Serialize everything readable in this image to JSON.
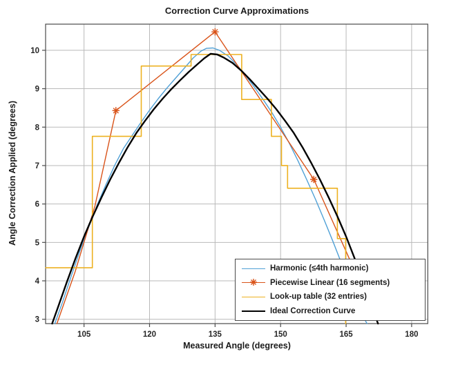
{
  "figure": {
    "title": "Correction Curve Approximations",
    "background": "#ffffff"
  },
  "chart_data": {
    "type": "line",
    "title": "Correction Curve Approximations",
    "xlabel": "Measured Angle (degrees)",
    "ylabel": "Angle Correction Applied (degrees)",
    "xlim": [
      96.2,
      183.7
    ],
    "ylim": [
      2.887,
      10.68
    ],
    "xticks": [
      105,
      120,
      135,
      150,
      165,
      180
    ],
    "yticks": [
      3,
      4,
      5,
      6,
      7,
      8,
      9,
      10
    ],
    "grid": true,
    "legend_position": "inside-bottom-right",
    "colors": {
      "grid": "#b9b9b9",
      "axis": "#4a4a4a",
      "tick_text": "#262626",
      "harmonic": "#4fa0d6",
      "piecewise": "#d95319",
      "lut": "#edb120",
      "ideal": "#000000"
    },
    "series": [
      {
        "name": "Harmonic (≤4th harmonic)",
        "slug": "harmonic",
        "color": "#4fa0d6",
        "width": 1.4,
        "marker": "none",
        "points": [
          [
            98.3,
            2.887
          ],
          [
            100,
            3.42
          ],
          [
            102,
            4.1
          ],
          [
            104,
            4.76
          ],
          [
            106,
            5.38
          ],
          [
            108,
            5.97
          ],
          [
            110,
            6.5
          ],
          [
            112,
            7.0
          ],
          [
            114,
            7.44
          ],
          [
            116,
            7.78
          ],
          [
            118,
            8.12
          ],
          [
            120,
            8.44
          ],
          [
            122,
            8.74
          ],
          [
            124,
            9.02
          ],
          [
            126,
            9.28
          ],
          [
            128,
            9.54
          ],
          [
            130,
            9.8
          ],
          [
            131.8,
            9.98
          ],
          [
            133,
            10.05
          ],
          [
            134.5,
            10.06
          ],
          [
            136,
            10.0
          ],
          [
            138,
            9.85
          ],
          [
            140,
            9.62
          ],
          [
            142,
            9.34
          ],
          [
            144,
            9.04
          ],
          [
            146,
            8.72
          ],
          [
            148,
            8.38
          ],
          [
            150,
            8.0
          ],
          [
            152,
            7.58
          ],
          [
            154,
            7.12
          ],
          [
            156,
            6.63
          ],
          [
            158,
            6.12
          ],
          [
            160,
            5.58
          ],
          [
            162,
            5.02
          ],
          [
            164,
            4.44
          ],
          [
            166,
            3.85
          ],
          [
            168,
            3.24
          ],
          [
            169.8,
            2.887
          ]
        ]
      },
      {
        "name": "Piecewise Linear (16 segments)",
        "slug": "piecewise",
        "color": "#d95319",
        "width": 1.4,
        "marker": "asterisk",
        "points": [
          [
            98.8,
            2.887
          ],
          [
            103,
            4.25
          ],
          [
            107.5,
            5.95
          ],
          [
            112.3,
            8.43
          ],
          [
            135,
            10.48
          ],
          [
            157.6,
            6.64
          ],
          [
            172.4,
            2.887
          ]
        ],
        "marker_points": [
          [
            112.3,
            8.43
          ],
          [
            135,
            10.48
          ],
          [
            157.6,
            6.64
          ]
        ]
      },
      {
        "name": "Look-up table (32 entries)",
        "slug": "lut",
        "color": "#edb120",
        "width": 1.6,
        "marker": "none",
        "points": [
          [
            96.2,
            4.34
          ],
          [
            106.9,
            4.34
          ],
          [
            106.9,
            7.76
          ],
          [
            118.1,
            7.76
          ],
          [
            118.1,
            9.59
          ],
          [
            129.5,
            9.59
          ],
          [
            129.5,
            9.89
          ],
          [
            141.1,
            9.89
          ],
          [
            141.1,
            8.72
          ],
          [
            147.9,
            8.72
          ],
          [
            147.9,
            7.76
          ],
          [
            150.2,
            7.76
          ],
          [
            150.2,
            7.0
          ],
          [
            151.6,
            7.0
          ],
          [
            151.6,
            6.41
          ],
          [
            163.0,
            6.41
          ],
          [
            163.0,
            5.1
          ],
          [
            164.9,
            5.1
          ],
          [
            164.9,
            2.887
          ]
        ]
      },
      {
        "name": "Ideal Correction Curve",
        "slug": "ideal",
        "color": "#000000",
        "width": 2.4,
        "marker": "none",
        "points": [
          [
            97.7,
            2.887
          ],
          [
            99,
            3.3
          ],
          [
            101,
            3.95
          ],
          [
            103,
            4.57
          ],
          [
            105,
            5.15
          ],
          [
            107,
            5.68
          ],
          [
            109,
            6.17
          ],
          [
            111,
            6.64
          ],
          [
            113,
            7.07
          ],
          [
            115,
            7.48
          ],
          [
            117,
            7.85
          ],
          [
            119,
            8.17
          ],
          [
            121,
            8.47
          ],
          [
            123,
            8.74
          ],
          [
            125,
            8.99
          ],
          [
            127,
            9.22
          ],
          [
            129,
            9.44
          ],
          [
            131,
            9.64
          ],
          [
            132.5,
            9.79
          ],
          [
            134,
            9.91
          ],
          [
            135.5,
            9.89
          ],
          [
            137,
            9.81
          ],
          [
            139,
            9.67
          ],
          [
            141,
            9.47
          ],
          [
            143,
            9.24
          ],
          [
            145,
            8.99
          ],
          [
            147,
            8.74
          ],
          [
            149,
            8.47
          ],
          [
            151,
            8.17
          ],
          [
            153,
            7.85
          ],
          [
            155,
            7.48
          ],
          [
            157,
            7.07
          ],
          [
            159,
            6.64
          ],
          [
            161,
            6.17
          ],
          [
            163,
            5.68
          ],
          [
            165,
            5.15
          ],
          [
            167,
            4.57
          ],
          [
            169,
            3.95
          ],
          [
            171,
            3.3
          ],
          [
            172.3,
            2.887
          ]
        ]
      }
    ]
  }
}
